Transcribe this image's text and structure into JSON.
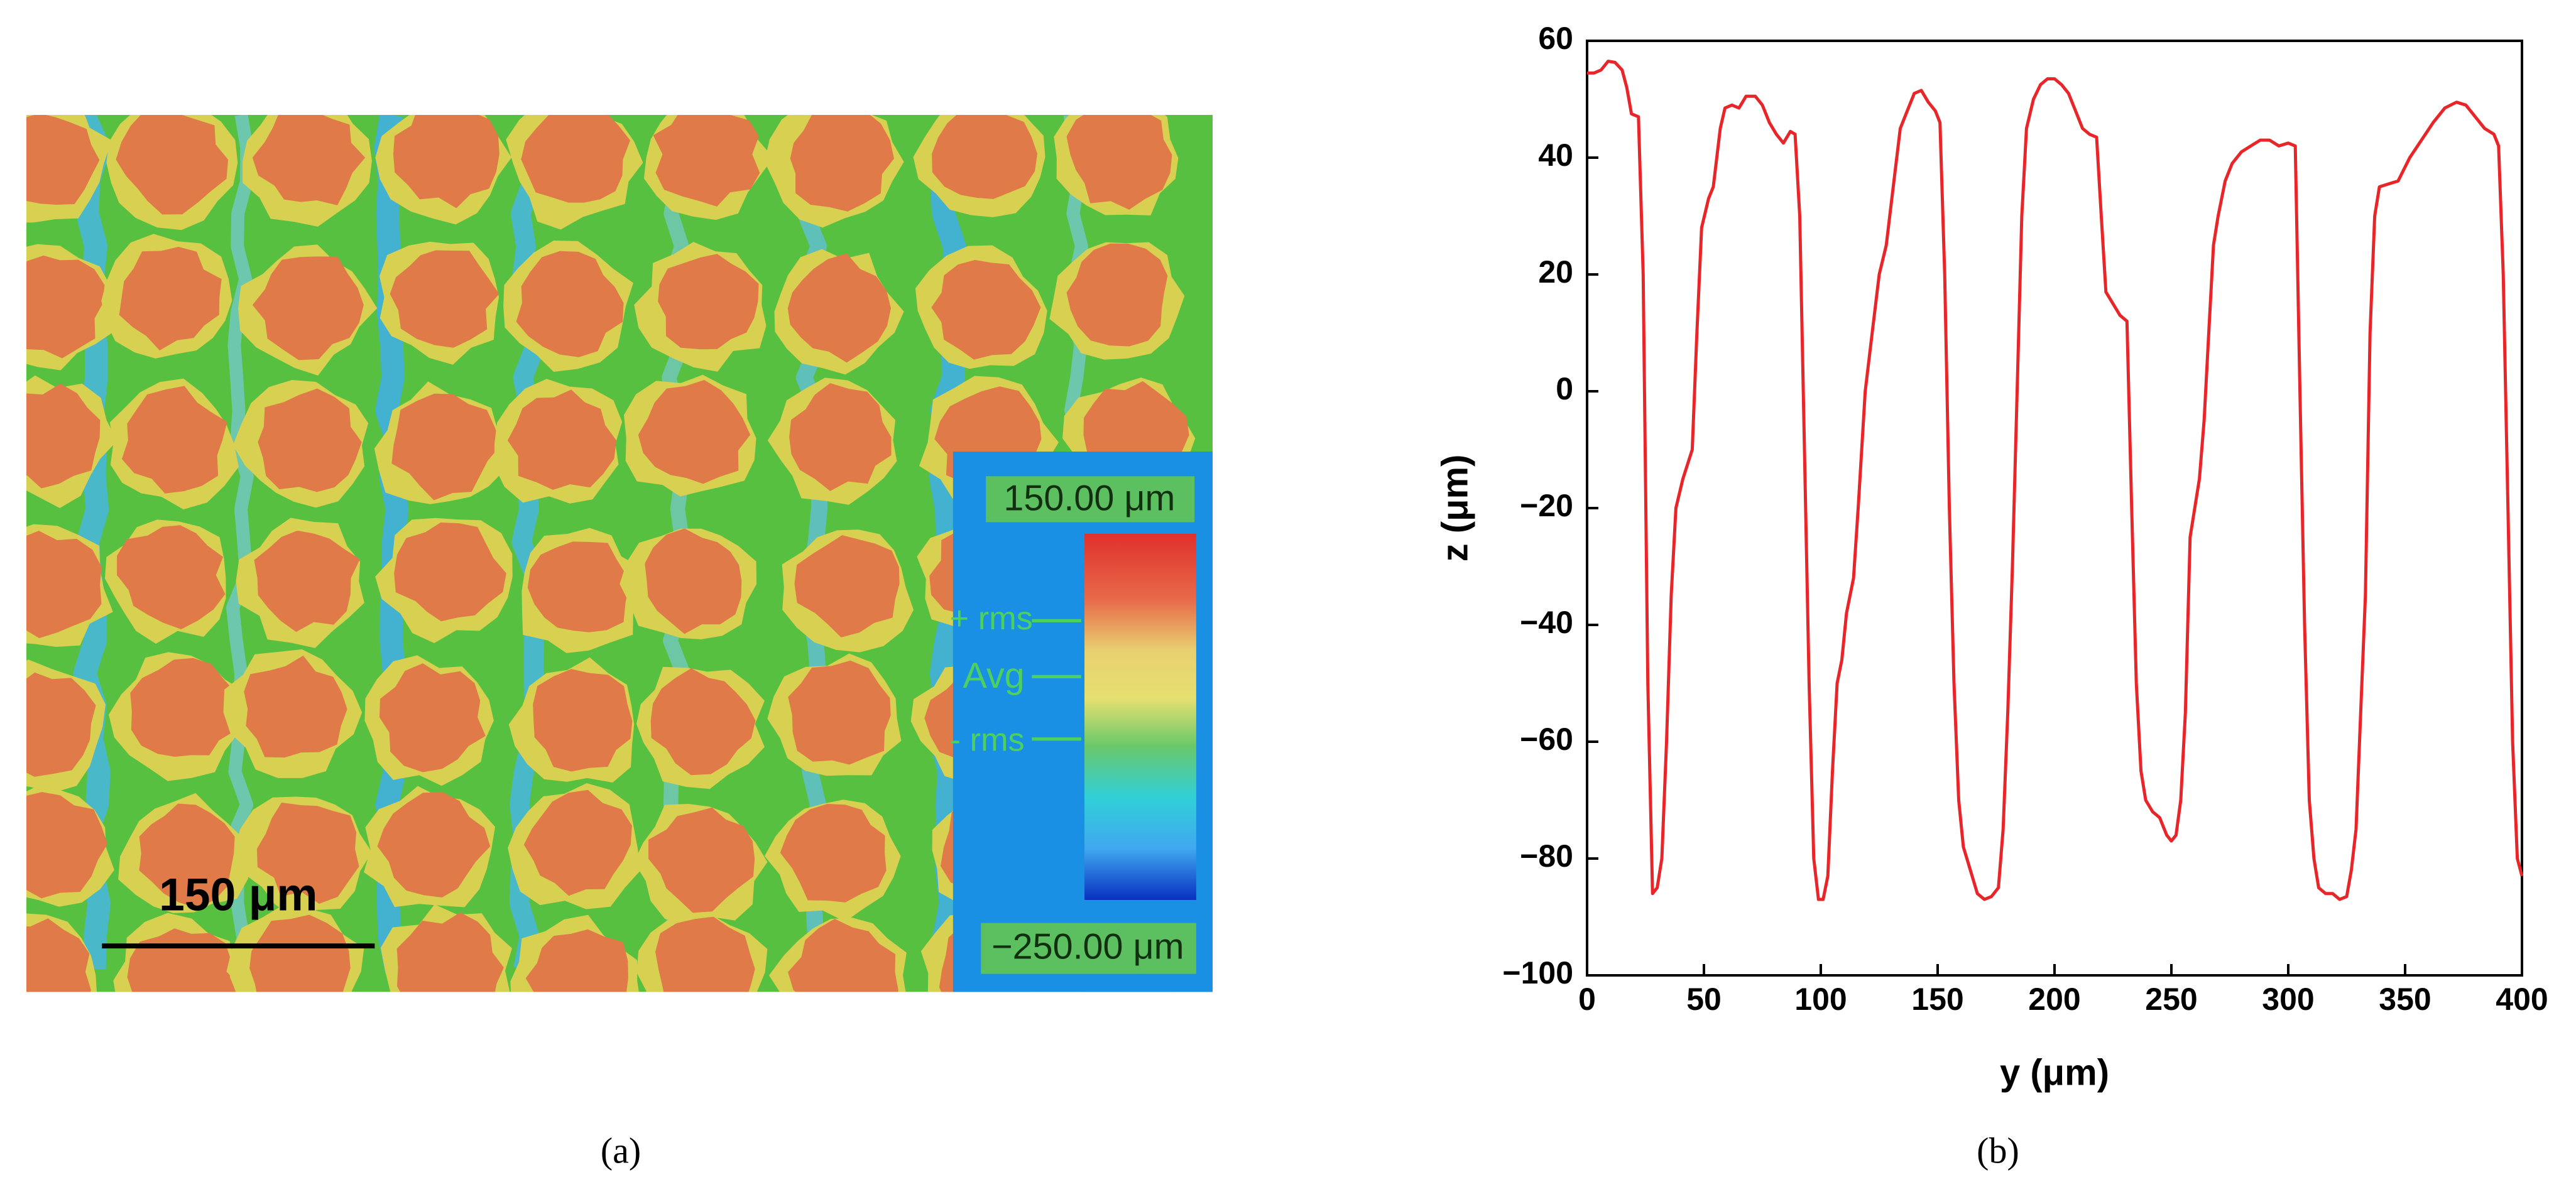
{
  "panel_a": {
    "scale_bar": "150 μm",
    "colorbar_max": "150.00 μm",
    "colorbar_min": "−250.00 μm",
    "markers": [
      "+ rms",
      "Avg",
      "- rms"
    ],
    "caption": "(a)"
  },
  "chart_data": {
    "type": "line",
    "caption": "(b)",
    "xlabel": "y (μm)",
    "ylabel": "z (μm)",
    "color": "#e8262a",
    "xlim": [
      0,
      400
    ],
    "xticks": [
      0,
      50,
      100,
      150,
      200,
      250,
      300,
      350,
      400
    ],
    "ylim": [
      -100,
      60
    ],
    "yticks": [
      {
        "value": -100,
        "label": "−100"
      },
      {
        "value": -80,
        "label": "−80"
      },
      {
        "value": -60,
        "label": "−60"
      },
      {
        "value": -40,
        "label": "−40"
      },
      {
        "value": -20,
        "label": "−20"
      },
      0,
      20,
      40,
      60
    ],
    "x": [
      0,
      3,
      6,
      9,
      12,
      15,
      17,
      19,
      22,
      24,
      26,
      28,
      30,
      32,
      34,
      36,
      38,
      41,
      45,
      47,
      49,
      52,
      54,
      57,
      59,
      62,
      65,
      68,
      72,
      75,
      78,
      81,
      84,
      87,
      89,
      91,
      93,
      95,
      97,
      99,
      101,
      103,
      105,
      107,
      109,
      111,
      114,
      116,
      119,
      122,
      125,
      128,
      131,
      134,
      137,
      140,
      143,
      146,
      149,
      151,
      153,
      155,
      157,
      159,
      161,
      164,
      167,
      170,
      173,
      176,
      178,
      180,
      182,
      184,
      186,
      188,
      191,
      194,
      197,
      200,
      203,
      206,
      209,
      212,
      215,
      218,
      220,
      222,
      225,
      228,
      231,
      233,
      235,
      237,
      239,
      242,
      245,
      248,
      250,
      252,
      254,
      256,
      258,
      260,
      262,
      264,
      266,
      268,
      270,
      273,
      276,
      280,
      284,
      288,
      292,
      296,
      300,
      303,
      305,
      307,
      309,
      311,
      313,
      316,
      319,
      322,
      325,
      327,
      329,
      331,
      333,
      335,
      337,
      339,
      343,
      347,
      352,
      357,
      362,
      367,
      372,
      376,
      380,
      384,
      388,
      390,
      392,
      394,
      396,
      398,
      400
    ],
    "values": [
      54.5,
      54.5,
      55,
      56.5,
      56.3,
      55,
      52,
      47.5,
      47,
      20,
      -50,
      -86,
      -85,
      -80,
      -60,
      -35,
      -20,
      -15,
      -10,
      10,
      28,
      33,
      35,
      45,
      48.5,
      49,
      48.5,
      50.5,
      50.5,
      49,
      46,
      44,
      42.5,
      44.5,
      44,
      30,
      -10,
      -50,
      -80,
      -87,
      -87,
      -83,
      -65,
      -50,
      -46,
      -38,
      -32,
      -20,
      0,
      10,
      20,
      25,
      35,
      45,
      48,
      51,
      51.5,
      49.5,
      48,
      46,
      20,
      -20,
      -50,
      -70,
      -78,
      -82,
      -86,
      -87,
      -86.5,
      -85,
      -75,
      -55,
      -30,
      0,
      30,
      45,
      50,
      52.5,
      53.5,
      53.5,
      52.5,
      51,
      48,
      45,
      44,
      43.5,
      30,
      17,
      15,
      13,
      12,
      -20,
      -50,
      -65,
      -70,
      -72,
      -73,
      -76,
      -77,
      -76,
      -70,
      -55,
      -25,
      -20,
      -15,
      -5,
      10,
      25,
      30,
      36,
      39,
      41,
      42,
      43,
      43,
      42,
      42.5,
      42,
      0,
      -40,
      -70,
      -80,
      -85,
      -86,
      -86,
      -87,
      -86.5,
      -82,
      -75,
      -55,
      -35,
      10,
      30,
      35,
      35.5,
      36,
      40,
      43,
      46,
      48.5,
      49.5,
      49,
      47,
      45,
      44,
      42,
      20,
      -20,
      -60,
      -80,
      -83
    ]
  }
}
